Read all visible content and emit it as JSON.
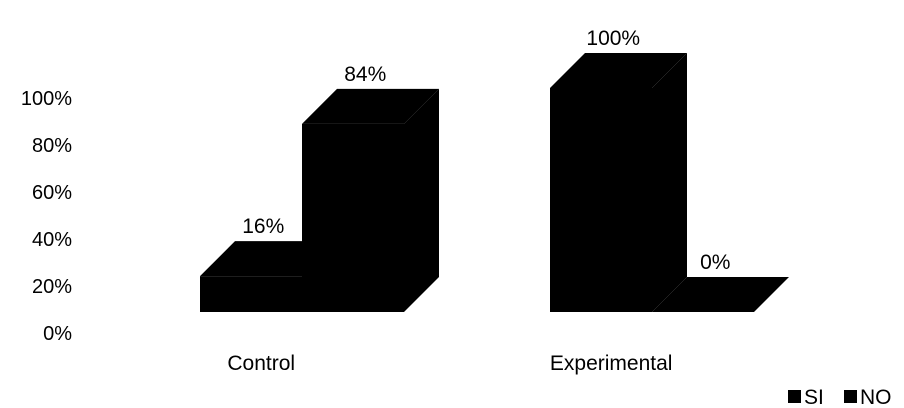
{
  "chart_data": {
    "type": "bar",
    "categories": [
      "Control",
      "Experimental"
    ],
    "series": [
      {
        "name": "SI",
        "values": [
          16,
          100
        ],
        "labels": [
          "16%",
          "100%"
        ]
      },
      {
        "name": "NO",
        "values": [
          84,
          0
        ],
        "labels": [
          "84%",
          "0%"
        ]
      }
    ],
    "y_ticks": [
      "0%",
      "20%",
      "40%",
      "60%",
      "80%",
      "100%"
    ],
    "ylim": [
      0,
      100
    ],
    "legend": "bottom-right",
    "grid": false,
    "three_d": true,
    "colors": {
      "SI": "#000000",
      "NO": "#000000"
    }
  }
}
